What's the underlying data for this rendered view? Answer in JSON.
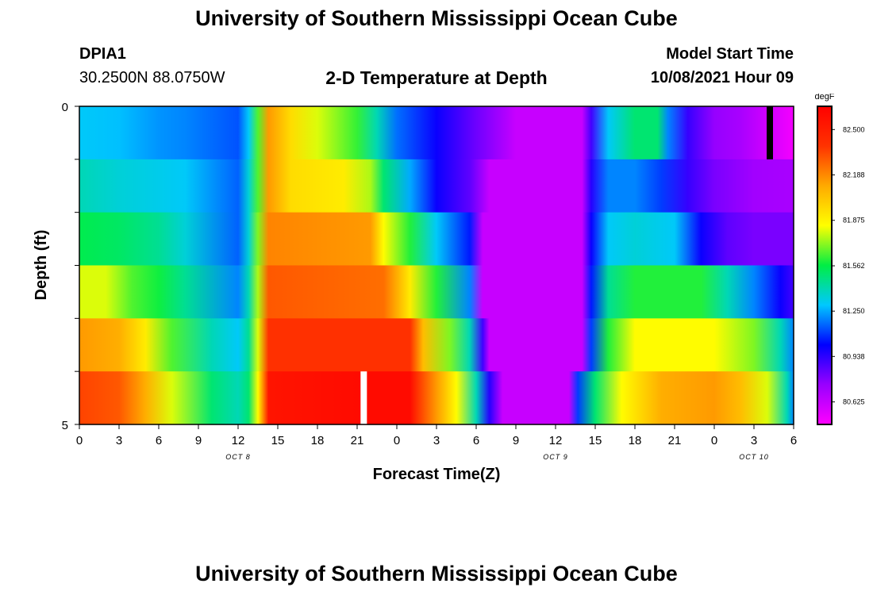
{
  "header": {
    "title": "University of Southern Mississippi Ocean Cube",
    "station": "DPIA1",
    "coords": "30.2500N  88.0750W",
    "plot_title": "2-D Temperature at Depth",
    "model_label": "Model Start Time",
    "model_time": "10/08/2021 Hour 09"
  },
  "footer": {
    "title": "University of Southern Mississippi Ocean Cube"
  },
  "colors": {
    "scale": [
      "#ff00ff",
      "#9900ff",
      "#0000ff",
      "#00c8ff",
      "#00ee44",
      "#ffff00",
      "#ffaa00",
      "#ff3300",
      "#ff0000"
    ],
    "missing_light": "#ffffff",
    "missing_dark": "#000000"
  },
  "chart_data": {
    "type": "heatmap",
    "title": "2-D Temperature at Depth",
    "xlabel": "Forecast Time(Z)",
    "ylabel": "Depth (ft)",
    "x_ticks": [
      "0",
      "3",
      "6",
      "9",
      "12",
      "15",
      "18",
      "21",
      "0",
      "3",
      "6",
      "9",
      "12",
      "15",
      "18",
      "21",
      "0",
      "3",
      "6"
    ],
    "x_tick_hours": [
      0,
      3,
      6,
      9,
      12,
      15,
      18,
      21,
      24,
      27,
      30,
      33,
      36,
      39,
      42,
      45,
      48,
      51,
      54
    ],
    "x_range_hours": [
      0,
      54
    ],
    "date_labels": [
      {
        "text": "OCT 8",
        "hour": 12
      },
      {
        "text": "OCT 9",
        "hour": 36
      },
      {
        "text": "OCT 10",
        "hour": 51
      }
    ],
    "y_tick_labels": [
      "0",
      "5"
    ],
    "y_range": [
      0,
      5
    ],
    "depth_layers": [
      0,
      1,
      2,
      3,
      4,
      5
    ],
    "colorbar": {
      "unit": "degF",
      "labels": [
        "82.500",
        "82.188",
        "81.875",
        "81.562",
        "81.250",
        "80.938",
        "80.625"
      ],
      "min": 80.47,
      "max": 82.66
    },
    "missing_markers": [
      {
        "layer": 0,
        "hour": 52.2,
        "shade": "dark"
      },
      {
        "layer": 5,
        "hour": 21.5,
        "shade": "light"
      }
    ],
    "layer_profiles": [
      [
        [
          0,
          81.3
        ],
        [
          3,
          81.28
        ],
        [
          6,
          81.22
        ],
        [
          8,
          81.2
        ],
        [
          12,
          81.13
        ],
        [
          12.8,
          81.3
        ],
        [
          13.5,
          81.65
        ],
        [
          14.3,
          82.15
        ],
        [
          16,
          81.95
        ],
        [
          18,
          81.8
        ],
        [
          21,
          81.62
        ],
        [
          22.5,
          81.4
        ],
        [
          24,
          81.17
        ],
        [
          27,
          81.0
        ],
        [
          30,
          80.82
        ],
        [
          33,
          80.62
        ],
        [
          36,
          80.62
        ],
        [
          38,
          80.62
        ],
        [
          38.7,
          80.9
        ],
        [
          40,
          81.3
        ],
        [
          42,
          81.5
        ],
        [
          43.7,
          81.5
        ],
        [
          44.5,
          81.2
        ],
        [
          46,
          80.92
        ],
        [
          48,
          80.75
        ],
        [
          50,
          80.7
        ],
        [
          52,
          80.6
        ],
        [
          54,
          80.5
        ]
      ],
      [
        [
          0,
          81.4
        ],
        [
          3,
          81.35
        ],
        [
          6,
          81.32
        ],
        [
          8,
          81.3
        ],
        [
          12,
          81.15
        ],
        [
          12.8,
          81.35
        ],
        [
          13.5,
          81.65
        ],
        [
          14.3,
          82.15
        ],
        [
          16,
          81.95
        ],
        [
          20,
          81.9
        ],
        [
          22,
          81.75
        ],
        [
          23,
          81.5
        ],
        [
          25,
          81.25
        ],
        [
          27,
          81.0
        ],
        [
          29.5,
          80.85
        ],
        [
          31,
          80.62
        ],
        [
          36,
          80.62
        ],
        [
          38,
          80.62
        ],
        [
          38.7,
          80.95
        ],
        [
          40,
          81.2
        ],
        [
          42,
          81.2
        ],
        [
          44,
          81.1
        ],
        [
          46,
          80.92
        ],
        [
          48,
          80.8
        ],
        [
          51,
          80.72
        ],
        [
          54,
          80.7
        ]
      ],
      [
        [
          0,
          81.55
        ],
        [
          3,
          81.52
        ],
        [
          6,
          81.45
        ],
        [
          8,
          81.35
        ],
        [
          12,
          81.15
        ],
        [
          12.8,
          81.35
        ],
        [
          13.5,
          81.7
        ],
        [
          14.3,
          82.2
        ],
        [
          22,
          82.15
        ],
        [
          23,
          81.85
        ],
        [
          25,
          81.6
        ],
        [
          27,
          81.3
        ],
        [
          29.5,
          81.05
        ],
        [
          30.5,
          80.62
        ],
        [
          36,
          80.62
        ],
        [
          38,
          80.62
        ],
        [
          38.7,
          81.0
        ],
        [
          40,
          81.3
        ],
        [
          42,
          81.35
        ],
        [
          45,
          81.3
        ],
        [
          47,
          81.0
        ],
        [
          49,
          80.85
        ],
        [
          51,
          80.8
        ],
        [
          54,
          80.8
        ]
      ],
      [
        [
          0,
          81.8
        ],
        [
          2,
          81.8
        ],
        [
          4,
          81.65
        ],
        [
          6,
          81.58
        ],
        [
          8,
          81.45
        ],
        [
          12,
          81.2
        ],
        [
          12.8,
          81.4
        ],
        [
          13.5,
          81.75
        ],
        [
          14.3,
          82.3
        ],
        [
          23,
          82.25
        ],
        [
          25,
          81.9
        ],
        [
          27,
          81.6
        ],
        [
          29.5,
          81.2
        ],
        [
          30.5,
          80.62
        ],
        [
          36,
          80.62
        ],
        [
          38,
          80.62
        ],
        [
          38.7,
          81.05
        ],
        [
          40,
          81.45
        ],
        [
          42,
          81.6
        ],
        [
          47,
          81.6
        ],
        [
          49,
          81.4
        ],
        [
          51,
          81.2
        ],
        [
          53,
          81.0
        ],
        [
          54,
          80.9
        ]
      ],
      [
        [
          0,
          82.15
        ],
        [
          3,
          82.1
        ],
        [
          5,
          81.9
        ],
        [
          7,
          81.65
        ],
        [
          10,
          81.4
        ],
        [
          12,
          81.3
        ],
        [
          12.8,
          81.45
        ],
        [
          13.5,
          81.8
        ],
        [
          14.3,
          82.4
        ],
        [
          25,
          82.4
        ],
        [
          26,
          82.05
        ],
        [
          28,
          81.7
        ],
        [
          29.5,
          81.4
        ],
        [
          30.5,
          80.9
        ],
        [
          31,
          80.62
        ],
        [
          36,
          80.62
        ],
        [
          38,
          80.62
        ],
        [
          38.7,
          81.1
        ],
        [
          40,
          81.6
        ],
        [
          42,
          81.85
        ],
        [
          48,
          81.85
        ],
        [
          51,
          81.7
        ],
        [
          53,
          81.4
        ],
        [
          54,
          81.2
        ]
      ],
      [
        [
          0,
          82.35
        ],
        [
          3,
          82.3
        ],
        [
          5,
          82.1
        ],
        [
          7,
          81.8
        ],
        [
          10,
          81.5
        ],
        [
          12,
          81.4
        ],
        [
          12.8,
          81.5
        ],
        [
          13.5,
          81.85
        ],
        [
          14.3,
          82.55
        ],
        [
          21,
          82.6
        ],
        [
          25,
          82.6
        ],
        [
          27,
          82.15
        ],
        [
          28.5,
          81.85
        ],
        [
          30,
          81.4
        ],
        [
          31,
          80.95
        ],
        [
          32,
          80.62
        ],
        [
          36,
          80.62
        ],
        [
          37,
          80.62
        ],
        [
          37.7,
          81.1
        ],
        [
          39,
          81.5
        ],
        [
          41,
          81.85
        ],
        [
          44,
          82.1
        ],
        [
          48,
          82.15
        ],
        [
          50,
          82.05
        ],
        [
          52,
          81.8
        ],
        [
          53.5,
          81.4
        ],
        [
          54,
          81.2
        ]
      ]
    ]
  }
}
